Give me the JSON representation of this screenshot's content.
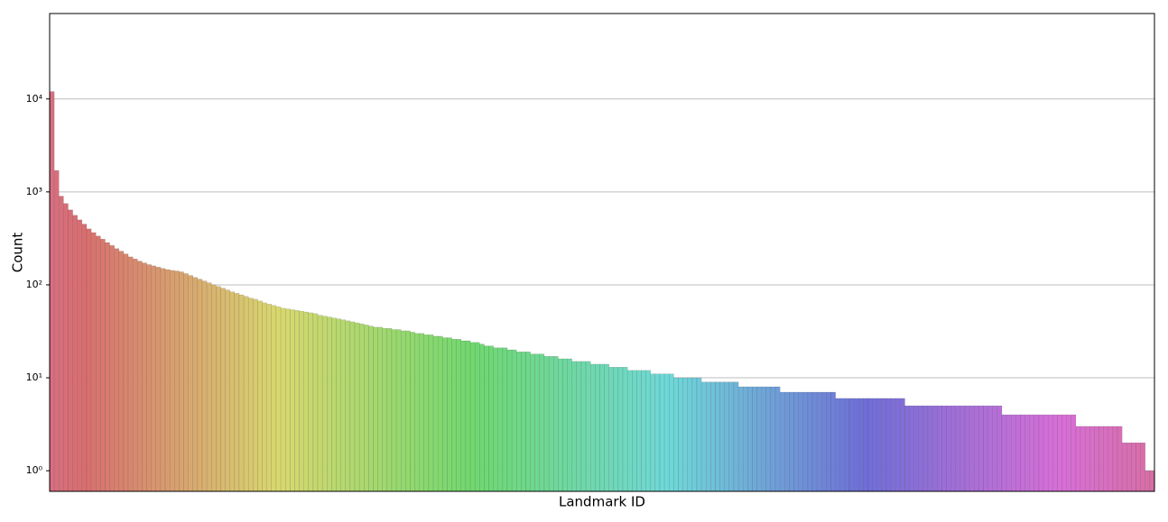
{
  "chart_data": {
    "type": "bar",
    "x_label": "Landmark ID",
    "y_label": "Count",
    "palette": "husl",
    "log_y": true,
    "grid": true,
    "values": [
      12000,
      1700,
      900,
      750,
      640,
      560,
      500,
      450,
      400,
      365,
      335,
      310,
      285,
      265,
      245,
      230,
      215,
      200,
      190,
      180,
      172,
      165,
      160,
      155,
      150,
      146,
      143,
      141,
      138,
      132,
      126,
      120,
      115,
      110,
      105,
      100,
      96,
      92,
      88,
      84,
      81,
      78,
      75,
      72,
      70,
      67,
      64,
      62,
      60,
      58,
      56,
      55,
      54,
      53,
      52,
      51,
      50,
      49,
      47,
      46,
      45,
      44,
      43,
      42,
      41,
      40,
      39,
      38,
      37,
      36,
      35,
      35,
      34,
      34,
      33,
      33,
      32,
      32,
      31,
      30,
      30,
      29,
      29,
      28,
      28,
      27,
      27,
      26,
      26,
      25,
      25,
      24,
      24,
      23,
      22,
      22,
      21,
      21,
      21,
      20,
      20,
      19,
      19,
      19,
      18,
      18,
      18,
      17,
      17,
      17,
      16,
      16,
      16,
      15,
      15,
      15,
      15,
      14,
      14,
      14,
      14,
      13,
      13,
      13,
      13,
      12,
      12,
      12,
      12,
      12,
      11,
      11,
      11,
      11,
      11,
      10,
      10,
      10,
      10,
      10,
      10,
      9,
      9,
      9,
      9,
      9,
      9,
      9,
      9,
      8,
      8,
      8,
      8,
      8,
      8,
      8,
      8,
      8,
      7,
      7,
      7,
      7,
      7,
      7,
      7,
      7,
      7,
      7,
      7,
      7,
      6,
      6,
      6,
      6,
      6,
      6,
      6,
      6,
      6,
      6,
      6,
      6,
      6,
      6,
      6,
      5,
      5,
      5,
      5,
      5,
      5,
      5,
      5,
      5,
      5,
      5,
      5,
      5,
      5,
      5,
      5,
      5,
      5,
      5,
      5,
      5,
      4,
      4,
      4,
      4,
      4,
      4,
      4,
      4,
      4,
      4,
      4,
      4,
      4,
      4,
      4,
      4,
      3,
      3,
      3,
      3,
      3,
      3,
      3,
      3,
      3,
      3,
      2,
      2,
      2,
      2,
      2,
      1,
      1
    ],
    "ylim": [
      0.6,
      83000
    ],
    "yticks": [
      {
        "value": 1,
        "label": "10⁰"
      },
      {
        "value": 10,
        "label": "10¹"
      },
      {
        "value": 100,
        "label": "10²"
      },
      {
        "value": 1000,
        "label": "10³"
      },
      {
        "value": 10000,
        "label": "10⁴"
      }
    ]
  }
}
